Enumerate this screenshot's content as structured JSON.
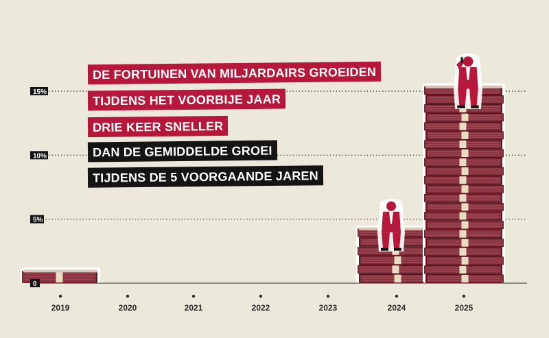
{
  "headline": [
    {
      "text": "DE FORTUINEN VAN MILJARDAIRS GROEIDEN",
      "color": "#b5183b"
    },
    {
      "text": "TIJDENS HET VOORBIJE JAAR",
      "color": "#b5183b"
    },
    {
      "text": "DRIE KEER SNELLER",
      "color": "#b5183b"
    },
    {
      "text": "DAN DE GEMIDDELDE GROEI",
      "color": "#141414"
    },
    {
      "text": "TIJDENS DE 5 VOORGAANDE JAREN",
      "color": "#141414"
    }
  ],
  "chart_data": {
    "type": "bar",
    "title": "",
    "xlabel": "",
    "ylabel": "",
    "categories": [
      "2019",
      "2020",
      "2021",
      "2022",
      "2023",
      "2024",
      "2025"
    ],
    "values": [
      1.0,
      null,
      null,
      null,
      null,
      4.3,
      15.4
    ],
    "ylim": [
      0,
      15
    ],
    "yticks": [
      0,
      5,
      10,
      15
    ],
    "ytick_labels": [
      "0",
      "5%",
      "10%",
      "15%"
    ],
    "grid": "dotted horizontal",
    "bar_colors": {
      "stack": "#7a2230",
      "band": "#e8dcc4",
      "figure": "#b5183b"
    },
    "annotations": [
      {
        "category": "2024",
        "icon": "seated-billionaire-icon"
      },
      {
        "category": "2025",
        "icon": "seated-billionaire-phone-icon"
      }
    ]
  }
}
